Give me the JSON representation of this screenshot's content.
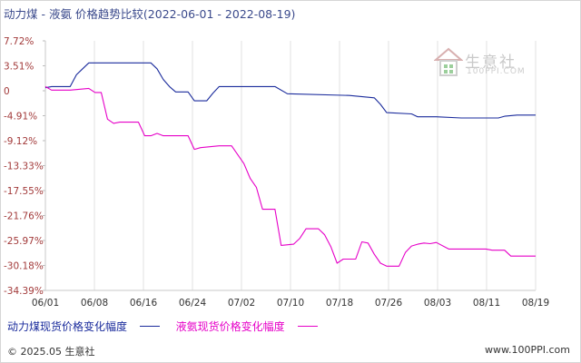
{
  "chart_data": {
    "type": "line",
    "title": "动力煤 - 液氨 价格趋势比较(2022-06-01 - 2022-08-19)",
    "x_ticks": [
      "06/01",
      "06/08",
      "06/16",
      "06/24",
      "07/02",
      "07/10",
      "07/18",
      "07/26",
      "08/03",
      "08/11",
      "08/19"
    ],
    "y_ticks": [
      "7.72%",
      "3.51%",
      "0",
      "-4.91%",
      "-9.12%",
      "-13.33%",
      "-17.55%",
      "-21.76%",
      "-25.97%",
      "-30.18%",
      "-34.39%"
    ],
    "ylim": [
      -34.39,
      7.72
    ],
    "xlim": [
      "2022-06-01",
      "2022-08-19"
    ],
    "grid": "vertical",
    "legend_position": "bottom",
    "series": [
      {
        "name": "动力煤现货价格变化幅度",
        "color": "#1a2b9c",
        "points": [
          [
            "2022-06-01",
            -0.2
          ],
          [
            "2022-06-02",
            0.0
          ],
          [
            "2022-06-05",
            0.0
          ],
          [
            "2022-06-06",
            2.0
          ],
          [
            "2022-06-07",
            3.0
          ],
          [
            "2022-06-08",
            4.0
          ],
          [
            "2022-06-14",
            4.0
          ],
          [
            "2022-06-16",
            4.0
          ],
          [
            "2022-06-18",
            4.0
          ],
          [
            "2022-06-19",
            3.0
          ],
          [
            "2022-06-20",
            1.2
          ],
          [
            "2022-06-21",
            0.0
          ],
          [
            "2022-06-22",
            -0.9
          ],
          [
            "2022-06-24",
            -0.9
          ],
          [
            "2022-06-25",
            -2.4
          ],
          [
            "2022-06-27",
            -2.4
          ],
          [
            "2022-06-28",
            -1.1
          ],
          [
            "2022-06-29",
            0.0
          ],
          [
            "2022-07-08",
            0.0
          ],
          [
            "2022-07-10",
            -1.2
          ],
          [
            "2022-07-20",
            -1.5
          ],
          [
            "2022-07-24",
            -1.9
          ],
          [
            "2022-07-25",
            -3.0
          ],
          [
            "2022-07-26",
            -4.4
          ],
          [
            "2022-07-30",
            -4.6
          ],
          [
            "2022-07-31",
            -5.1
          ],
          [
            "2022-08-03",
            -5.1
          ],
          [
            "2022-08-07",
            -5.3
          ],
          [
            "2022-08-13",
            -5.3
          ],
          [
            "2022-08-14",
            -5.0
          ],
          [
            "2022-08-16",
            -4.8
          ],
          [
            "2022-08-19",
            -4.8
          ]
        ]
      },
      {
        "name": "液氨现货价格变化幅度",
        "color": "#e600c8",
        "points": [
          [
            "2022-06-01",
            0.0
          ],
          [
            "2022-06-02",
            -0.6
          ],
          [
            "2022-06-05",
            -0.6
          ],
          [
            "2022-06-08",
            -0.3
          ],
          [
            "2022-06-09",
            -1.0
          ],
          [
            "2022-06-10",
            -1.0
          ],
          [
            "2022-06-11",
            -5.5
          ],
          [
            "2022-06-12",
            -6.2
          ],
          [
            "2022-06-13",
            -6.0
          ],
          [
            "2022-06-16",
            -6.0
          ],
          [
            "2022-06-17",
            -8.3
          ],
          [
            "2022-06-18",
            -8.3
          ],
          [
            "2022-06-19",
            -7.9
          ],
          [
            "2022-06-20",
            -8.3
          ],
          [
            "2022-06-24",
            -8.3
          ],
          [
            "2022-06-25",
            -10.6
          ],
          [
            "2022-06-26",
            -10.3
          ],
          [
            "2022-06-29",
            -10.0
          ],
          [
            "2022-07-01",
            -10.0
          ],
          [
            "2022-07-03",
            -13.0
          ],
          [
            "2022-07-04",
            -15.5
          ],
          [
            "2022-07-05",
            -17.0
          ],
          [
            "2022-07-06",
            -20.7
          ],
          [
            "2022-07-07",
            -20.7
          ],
          [
            "2022-07-08",
            -20.7
          ],
          [
            "2022-07-09",
            -26.8
          ],
          [
            "2022-07-11",
            -26.6
          ],
          [
            "2022-07-12",
            -25.6
          ],
          [
            "2022-07-13",
            -24.0
          ],
          [
            "2022-07-15",
            -24.0
          ],
          [
            "2022-07-16",
            -25.0
          ],
          [
            "2022-07-17",
            -27.0
          ],
          [
            "2022-07-18",
            -29.8
          ],
          [
            "2022-07-19",
            -29.1
          ],
          [
            "2022-07-21",
            -29.1
          ],
          [
            "2022-07-22",
            -26.2
          ],
          [
            "2022-07-23",
            -26.4
          ],
          [
            "2022-07-24",
            -28.3
          ],
          [
            "2022-07-25",
            -29.8
          ],
          [
            "2022-07-26",
            -30.3
          ],
          [
            "2022-07-28",
            -30.3
          ],
          [
            "2022-07-29",
            -28.0
          ],
          [
            "2022-07-30",
            -26.9
          ],
          [
            "2022-07-31",
            -26.6
          ],
          [
            "2022-08-01",
            -26.4
          ],
          [
            "2022-08-02",
            -26.5
          ],
          [
            "2022-08-03",
            -26.3
          ],
          [
            "2022-08-05",
            -27.4
          ],
          [
            "2022-08-11",
            -27.4
          ],
          [
            "2022-08-12",
            -27.6
          ],
          [
            "2022-08-14",
            -27.6
          ],
          [
            "2022-08-15",
            -28.6
          ],
          [
            "2022-08-19",
            -28.6
          ]
        ]
      }
    ]
  },
  "legend": {
    "coal_label": "动力煤现货价格变化幅度",
    "ammonia_label": "液氨现货价格变化幅度"
  },
  "watermark": {
    "name": "生意社",
    "site": "100PPI.COM"
  },
  "footer": {
    "copyright": "© 2025.05 生意社",
    "website": "www.100PPI.com"
  }
}
